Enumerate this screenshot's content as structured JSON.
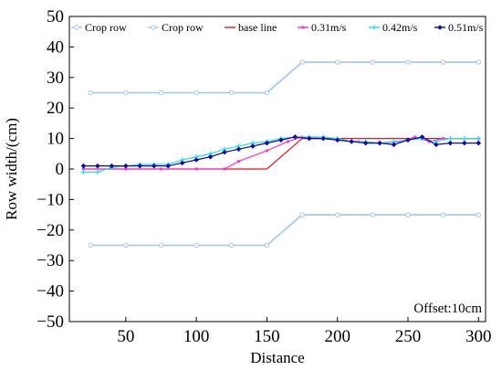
{
  "chart_data": {
    "type": "line",
    "xlabel": "Distance",
    "ylabel": "Row width/(cm)",
    "xlim": [
      10,
      305
    ],
    "ylim": [
      -50,
      50
    ],
    "xticks": [
      50,
      100,
      150,
      200,
      250,
      300
    ],
    "yticks": [
      -50,
      -40,
      -30,
      -20,
      -10,
      0,
      10,
      20,
      30,
      40,
      50
    ],
    "grid": false,
    "legend_position": "top",
    "annotation": "Offset:10cm",
    "series": [
      {
        "name": "Crop row",
        "color": "#a7c4e6",
        "marker": "circle",
        "x": [
          25,
          50,
          75,
          100,
          125,
          150,
          175,
          200,
          225,
          250,
          275,
          300
        ],
        "y": [
          25,
          25,
          25,
          25,
          25,
          25,
          35,
          35,
          35,
          35,
          35,
          35
        ]
      },
      {
        "name": "Crop row",
        "color": "#a7c4e6",
        "marker": "circle",
        "x": [
          25,
          50,
          75,
          100,
          125,
          150,
          175,
          200,
          225,
          250,
          275,
          300
        ],
        "y": [
          -25,
          -25,
          -25,
          -25,
          -25,
          -25,
          -15,
          -15,
          -15,
          -15,
          -15,
          -15
        ]
      },
      {
        "name": "base line",
        "color": "#e8151b",
        "marker": "none",
        "x": [
          20,
          150,
          175,
          300
        ],
        "y": [
          0,
          0,
          10,
          10
        ]
      },
      {
        "name": "0.31m/s",
        "color": "#ff33cc",
        "marker": "dot",
        "x": [
          20,
          50,
          75,
          100,
          120,
          130,
          150,
          165,
          175,
          190,
          200,
          215,
          230,
          245,
          255,
          265,
          275,
          300
        ],
        "y": [
          0,
          0,
          0,
          0,
          0,
          2.5,
          6,
          9,
          10.5,
          10,
          9.5,
          9,
          8.5,
          9,
          10.5,
          9,
          10,
          10
        ]
      },
      {
        "name": "0.42m/s",
        "color": "#1ee0ef",
        "marker": "star",
        "x": [
          20,
          30,
          40,
          50,
          60,
          70,
          80,
          90,
          100,
          110,
          120,
          130,
          140,
          150,
          160,
          170,
          180,
          190,
          200,
          210,
          220,
          230,
          240,
          250,
          260,
          270,
          280,
          290,
          300
        ],
        "y": [
          -1,
          -1,
          0.5,
          1,
          1.5,
          1.5,
          1.5,
          3,
          4,
          5,
          6.5,
          7.5,
          8.5,
          9,
          10,
          10.5,
          10.5,
          10.5,
          10,
          9,
          9,
          8.5,
          9,
          9.5,
          10,
          9,
          10,
          10,
          10
        ]
      },
      {
        "name": "0.51m/s",
        "color": "#0a0aa8",
        "marker": "diamond",
        "x": [
          20,
          30,
          40,
          50,
          60,
          70,
          80,
          90,
          100,
          110,
          120,
          130,
          140,
          150,
          160,
          170,
          180,
          190,
          200,
          210,
          220,
          230,
          240,
          250,
          260,
          270,
          280,
          290,
          300
        ],
        "y": [
          1,
          1,
          1,
          1,
          1,
          1,
          1,
          2,
          3,
          4,
          5.5,
          6.5,
          7.5,
          8.5,
          9.5,
          10.5,
          10,
          10,
          9.5,
          9,
          8.5,
          8.5,
          8,
          9.5,
          10.5,
          8,
          8.5,
          8.5,
          8.5
        ]
      }
    ]
  }
}
